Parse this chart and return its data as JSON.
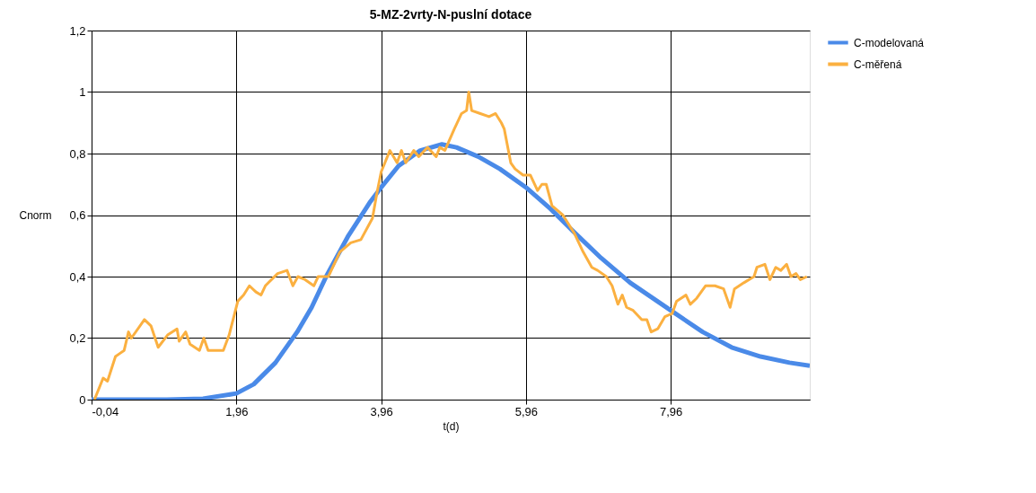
{
  "chart_data": {
    "type": "line",
    "title": "5-MZ-2vrty-N-puslní dotace",
    "xlabel": "t(d)",
    "ylabel": "Cnorm",
    "xlim": [
      -0.04,
      9.88
    ],
    "xticks": [
      {
        "value": -0.04,
        "label": "-0,04"
      },
      {
        "value": 1.96,
        "label": "1,96"
      },
      {
        "value": 3.96,
        "label": "3,96"
      },
      {
        "value": 5.96,
        "label": "5,96"
      },
      {
        "value": 7.96,
        "label": "7,96"
      }
    ],
    "ylim": [
      0,
      1.2
    ],
    "yticks": [
      0,
      {
        "value": 0.2,
        "label": "0,2"
      },
      {
        "value": 0.4,
        "label": "0,4"
      },
      {
        "value": 0.6,
        "label": "0,6"
      },
      {
        "value": 0.8,
        "label": "0,8"
      },
      1,
      {
        "value": 1.2,
        "label": "1,2"
      }
    ],
    "grid": true,
    "legend": "top right",
    "marker": "none",
    "line_style": "solid",
    "series": [
      {
        "name": "C-modelovaná",
        "color": "#4a8ae8",
        "x": [
          -0.04,
          0.5,
          1.0,
          1.5,
          1.96,
          2.2,
          2.5,
          2.8,
          3.0,
          3.2,
          3.5,
          3.8,
          3.96,
          4.2,
          4.5,
          4.8,
          5.0,
          5.3,
          5.6,
          5.96,
          6.3,
          6.6,
          7.0,
          7.4,
          7.96,
          8.4,
          8.8,
          9.2,
          9.6,
          9.88
        ],
        "values": [
          0,
          0,
          0,
          0.003,
          0.02,
          0.05,
          0.12,
          0.22,
          0.3,
          0.4,
          0.53,
          0.64,
          0.69,
          0.76,
          0.81,
          0.83,
          0.82,
          0.79,
          0.75,
          0.69,
          0.62,
          0.55,
          0.46,
          0.38,
          0.29,
          0.22,
          0.17,
          0.14,
          0.12,
          0.11
        ]
      },
      {
        "name": "C-měřená",
        "color": "#fbb040",
        "x": [
          0,
          0.12,
          0.18,
          0.29,
          0.35,
          0.41,
          0.47,
          0.51,
          0.69,
          0.78,
          0.88,
          1.01,
          1.14,
          1.17,
          1.26,
          1.32,
          1.45,
          1.51,
          1.57,
          1.78,
          1.86,
          1.98,
          2.06,
          2.14,
          2.23,
          2.3,
          2.36,
          2.53,
          2.66,
          2.74,
          2.81,
          2.91,
          3.03,
          3.09,
          3.23,
          3.39,
          3.54,
          3.68,
          3.84,
          3.9,
          3.96,
          4.08,
          4.18,
          4.24,
          4.3,
          4.41,
          4.48,
          4.6,
          4.72,
          4.77,
          4.84,
          4.97,
          5.07,
          5.14,
          5.17,
          5.21,
          5.33,
          5.45,
          5.54,
          5.62,
          5.66,
          5.75,
          5.81,
          5.92,
          6.02,
          6.12,
          6.18,
          6.24,
          6.32,
          6.47,
          6.63,
          6.75,
          6.87,
          6.95,
          7.07,
          7.15,
          7.23,
          7.29,
          7.35,
          7.44,
          7.56,
          7.63,
          7.69,
          7.78,
          7.88,
          7.98,
          8.04,
          8.17,
          8.23,
          8.32,
          8.44,
          8.57,
          8.69,
          8.78,
          8.84,
          8.97,
          9.11,
          9.15,
          9.26,
          9.33,
          9.41,
          9.48,
          9.56,
          9.62,
          9.69,
          9.75,
          9.84
        ],
        "values": [
          0,
          0.07,
          0.06,
          0.14,
          0.15,
          0.16,
          0.22,
          0.2,
          0.26,
          0.24,
          0.17,
          0.21,
          0.23,
          0.19,
          0.22,
          0.18,
          0.16,
          0.2,
          0.16,
          0.16,
          0.21,
          0.32,
          0.34,
          0.37,
          0.35,
          0.34,
          0.37,
          0.41,
          0.42,
          0.37,
          0.4,
          0.39,
          0.37,
          0.4,
          0.4,
          0.48,
          0.51,
          0.52,
          0.59,
          0.67,
          0.74,
          0.81,
          0.77,
          0.81,
          0.77,
          0.81,
          0.79,
          0.82,
          0.79,
          0.82,
          0.81,
          0.88,
          0.93,
          0.94,
          1.0,
          0.94,
          0.93,
          0.92,
          0.93,
          0.9,
          0.88,
          0.77,
          0.75,
          0.73,
          0.73,
          0.68,
          0.7,
          0.7,
          0.63,
          0.6,
          0.54,
          0.48,
          0.43,
          0.42,
          0.4,
          0.37,
          0.31,
          0.34,
          0.3,
          0.29,
          0.26,
          0.26,
          0.22,
          0.23,
          0.27,
          0.28,
          0.32,
          0.34,
          0.31,
          0.33,
          0.37,
          0.37,
          0.36,
          0.3,
          0.36,
          0.38,
          0.4,
          0.43,
          0.44,
          0.39,
          0.43,
          0.42,
          0.44,
          0.4,
          0.41,
          0.39,
          0.4
        ]
      }
    ]
  }
}
